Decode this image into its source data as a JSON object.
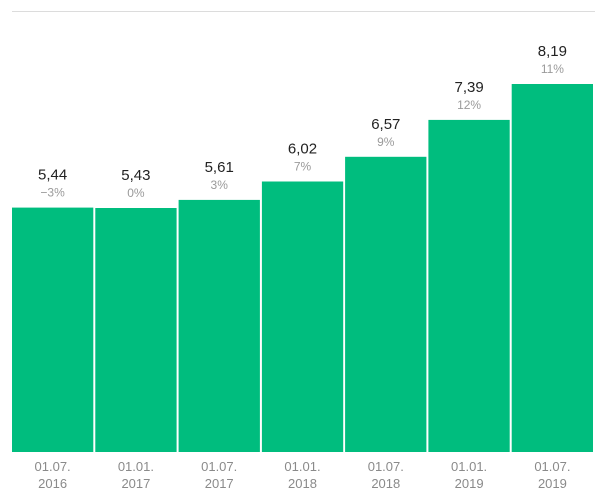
{
  "colors": {
    "bar": "#00BD7E",
    "background": "#FFFFFF",
    "value_text": "#222222",
    "pct_text": "#9A9A9A",
    "tick_text": "#8A8A8A"
  },
  "chart_data": {
    "type": "bar",
    "title": "",
    "xlabel": "",
    "ylabel": "",
    "grid": false,
    "ylim": [
      0,
      8.19
    ],
    "categories": [
      [
        "01.07.",
        "2016"
      ],
      [
        "01.01.",
        "2017"
      ],
      [
        "01.07.",
        "2017"
      ],
      [
        "01.01.",
        "2018"
      ],
      [
        "01.07.",
        "2018"
      ],
      [
        "01.01.",
        "2019"
      ],
      [
        "01.07.",
        "2019"
      ]
    ],
    "values": [
      5.44,
      5.43,
      5.61,
      6.02,
      6.57,
      7.39,
      8.19
    ],
    "value_labels": [
      "5,44",
      "5,43",
      "5,61",
      "6,02",
      "6,57",
      "7,39",
      "8,19"
    ],
    "change_labels": [
      "−3%",
      "0%",
      "3%",
      "7%",
      "9%",
      "12%",
      "11%"
    ]
  }
}
